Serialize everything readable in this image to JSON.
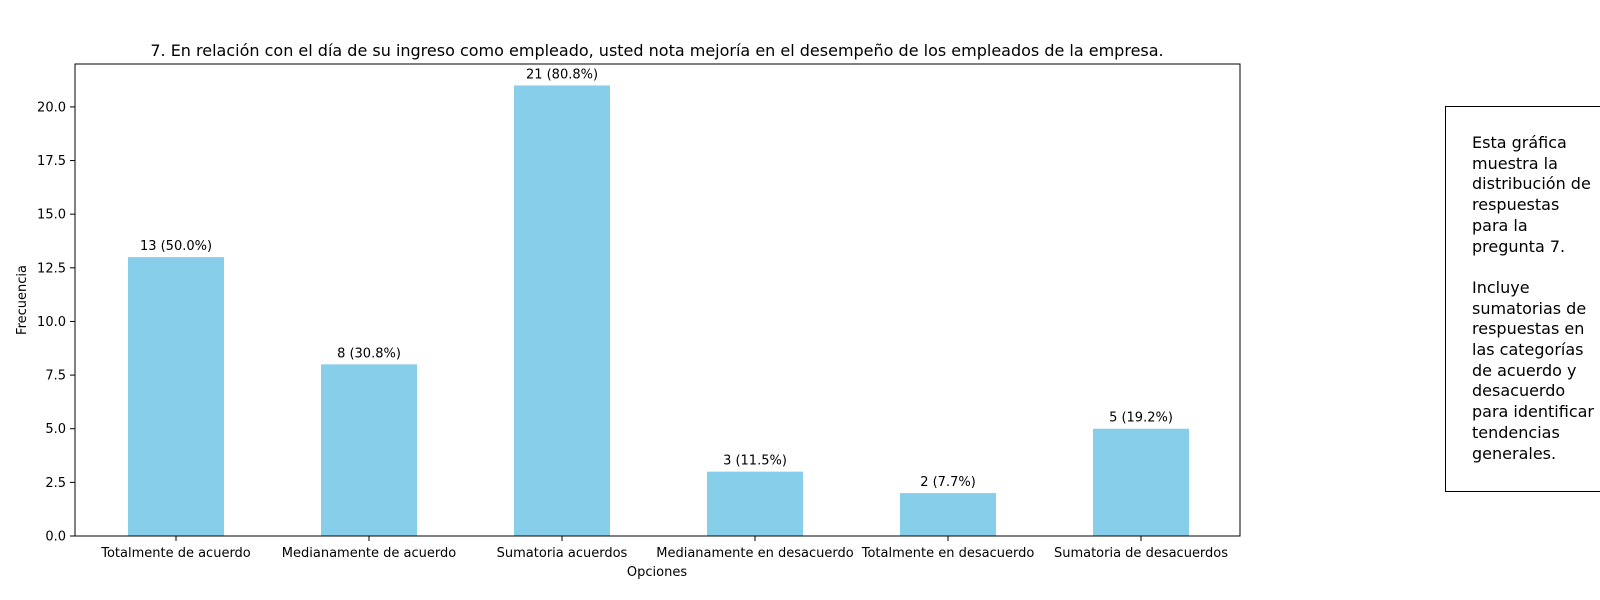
{
  "chart_data": {
    "type": "bar",
    "title": "7. En relación con el día de su ingreso como empleado, usted nota mejoría en el desempeño de los empleados de la empresa.",
    "xlabel": "Opciones",
    "ylabel": "Frecuencia",
    "categories": [
      "Totalmente de acuerdo",
      "Medianamente de acuerdo",
      "Sumatoria acuerdos",
      "Medianamente en desacuerdo",
      "Totalmente en desacuerdo",
      "Sumatoria de desacuerdos"
    ],
    "values": [
      13,
      8,
      21,
      3,
      2,
      5
    ],
    "data_labels": [
      "13 (50.0%)",
      "8 (30.8%)",
      "21 (80.8%)",
      "3 (11.5%)",
      "2 (7.7%)",
      "5 (19.2%)"
    ],
    "ylim": [
      0,
      22
    ],
    "yticks": [
      "0.0",
      "2.5",
      "5.0",
      "7.5",
      "10.0",
      "12.5",
      "15.0",
      "17.5",
      "20.0"
    ],
    "bar_color": "#87ceeb",
    "grid": false,
    "legend": false
  },
  "note": {
    "text": "Esta gráfica\nmuestra la\ndistribución de\nrespuestas\npara la\npregunta 7.\n\nIncluye\nsumatorias de\nrespuestas en\nlas categorías\nde acuerdo y\ndesacuerdo\npara identificar\ntendencias\ngenerales."
  }
}
